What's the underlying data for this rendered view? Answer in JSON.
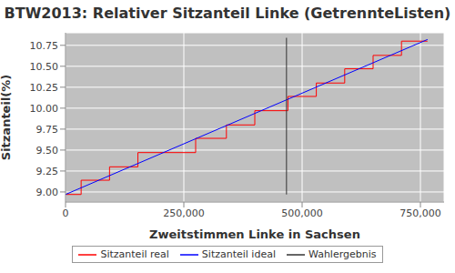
{
  "chart_data": {
    "type": "line",
    "title": "BTW2013: Relativer Sitzanteil Linke (GetrennteListen)",
    "x_label": "Zweitstimmen Linke in Sachsen",
    "y_label": "Sitzanteil(%)",
    "xlim": [
      0,
      800000
    ],
    "ylim": [
      8.88,
      10.9
    ],
    "xticks": [
      0,
      {
        "value": 250000,
        "label": "250,000"
      },
      {
        "value": 500000,
        "label": "500,000"
      },
      {
        "value": 750000,
        "label": "750,000"
      }
    ],
    "yticks": [
      {
        "value": 9,
        "label": "9.00"
      },
      9.25,
      {
        "value": 9.5,
        "label": "9.50"
      },
      9.75,
      {
        "value": 10,
        "label": "10.00"
      },
      10.25,
      {
        "value": 10.5,
        "label": "10.50"
      },
      10.75
    ],
    "grid": true,
    "legend": "bottom",
    "series": [
      {
        "name": "Sitzanteil real",
        "color": "#ff0000",
        "line_style": "step",
        "x": [
          0,
          33000,
          93000,
          153000,
          275000,
          340000,
          400000,
          470000,
          530000,
          590000,
          650000,
          710000,
          765000
        ],
        "values": [
          8.97,
          9.14,
          9.3,
          9.47,
          9.64,
          9.8,
          9.97,
          10.14,
          10.3,
          10.47,
          10.63,
          10.8,
          10.8
        ]
      },
      {
        "name": "Sitzanteil ideal",
        "color": "#0000ff",
        "line_style": "solid",
        "x": [
          0,
          765000
        ],
        "values": [
          8.97,
          10.82
        ]
      },
      {
        "name": "Wahlergebnis",
        "color": "#333333",
        "line_style": "solid",
        "x": [
          467000,
          467000
        ],
        "values": [
          8.97,
          10.84
        ]
      }
    ]
  }
}
